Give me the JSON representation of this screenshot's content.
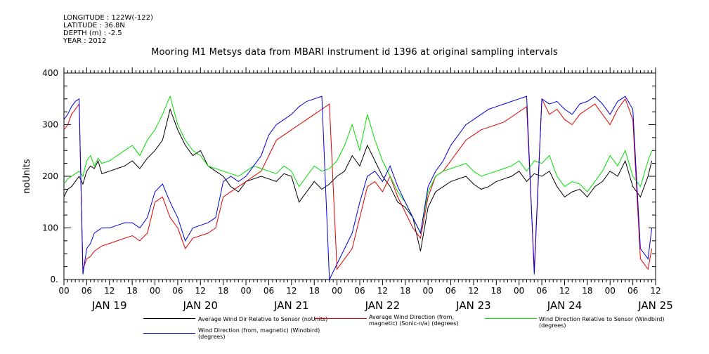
{
  "meta": {
    "longitude": "LONGITUDE : 122W(-122)",
    "latitude": "LATITUDE : 36.8N",
    "depth": "DEPTH (m) : -2.5",
    "year": "YEAR : 2012"
  },
  "chart_data": {
    "type": "line",
    "title": "Mooring M1 Metsys data from MBARI instrument id 1396 at original sampling intervals",
    "xlabel": "",
    "ylabel": "noUnits",
    "ylim": [
      0,
      400
    ],
    "yticks": [
      "0.",
      "100",
      "200",
      "300",
      "400"
    ],
    "xlim_hours": [
      0,
      156
    ],
    "x_tick_labels": [
      "00",
      "06",
      "12",
      "18",
      "00",
      "06",
      "12",
      "18",
      "00",
      "06",
      "12",
      "18",
      "00",
      "06",
      "12",
      "18",
      "00",
      "06",
      "12",
      "18",
      "00",
      "06",
      "12",
      "18",
      "00",
      "06",
      "12"
    ],
    "day_labels": [
      "JAN 19",
      "JAN 20",
      "JAN 21",
      "JAN 22",
      "JAN 23",
      "JAN 24",
      "JAN 25"
    ],
    "grid": false,
    "legend": "bottom",
    "series": [
      {
        "name": "Average Wind Dir Relative to Sensor (noUnits)",
        "color": "#000000",
        "x": [
          0,
          1,
          2,
          3,
          4,
          5,
          6,
          7,
          8,
          9,
          10,
          12,
          14,
          16,
          18,
          20,
          22,
          24,
          26,
          28,
          30,
          32,
          34,
          36,
          38,
          40,
          42,
          44,
          46,
          48,
          50,
          52,
          54,
          56,
          58,
          60,
          62,
          64,
          66,
          68,
          70,
          72,
          74,
          76,
          78,
          80,
          82,
          84,
          86,
          88,
          90,
          92,
          94,
          96,
          98,
          100,
          102,
          104,
          106,
          108,
          110,
          112,
          114,
          116,
          118,
          120,
          122,
          124,
          126,
          128,
          130,
          132,
          134,
          136,
          138,
          140,
          142,
          144,
          146,
          148,
          150,
          152,
          154,
          155
        ],
        "y": [
          160,
          175,
          180,
          190,
          200,
          185,
          210,
          220,
          215,
          230,
          205,
          210,
          215,
          220,
          230,
          215,
          235,
          250,
          270,
          330,
          290,
          260,
          240,
          250,
          220,
          210,
          200,
          180,
          170,
          190,
          195,
          200,
          195,
          190,
          205,
          200,
          150,
          170,
          190,
          175,
          185,
          200,
          210,
          240,
          220,
          260,
          230,
          200,
          180,
          150,
          140,
          120,
          55,
          140,
          170,
          180,
          190,
          195,
          200,
          185,
          175,
          180,
          190,
          195,
          200,
          210,
          190,
          205,
          200,
          210,
          180,
          160,
          170,
          175,
          160,
          180,
          190,
          210,
          200,
          230,
          180,
          160,
          200,
          230
        ]
      },
      {
        "name": "Average Wind Direction (from, magnetic) (Sonic-n/a) (degrees)",
        "color": "#e00000",
        "x": [
          0,
          1,
          2,
          3,
          4,
          5,
          6,
          7,
          8,
          9,
          10,
          12,
          14,
          16,
          18,
          20,
          22,
          24,
          26,
          28,
          30,
          32,
          34,
          36,
          38,
          40,
          42,
          44,
          46,
          48,
          50,
          52,
          54,
          56,
          58,
          60,
          62,
          64,
          66,
          68,
          70,
          72,
          74,
          76,
          78,
          80,
          82,
          84,
          86,
          88,
          90,
          92,
          94,
          96,
          98,
          100,
          102,
          104,
          106,
          108,
          110,
          112,
          114,
          116,
          118,
          120,
          122,
          124,
          126,
          128,
          130,
          132,
          134,
          136,
          138,
          140,
          142,
          144,
          146,
          148,
          150,
          152,
          154,
          155
        ],
        "y": [
          290,
          300,
          320,
          330,
          340,
          20,
          40,
          45,
          55,
          60,
          65,
          70,
          75,
          80,
          85,
          75,
          90,
          150,
          160,
          120,
          100,
          60,
          80,
          85,
          90,
          100,
          160,
          170,
          180,
          190,
          200,
          210,
          240,
          270,
          280,
          290,
          300,
          310,
          320,
          330,
          340,
          20,
          40,
          60,
          120,
          180,
          190,
          170,
          200,
          160,
          130,
          100,
          80,
          160,
          200,
          210,
          230,
          250,
          270,
          280,
          290,
          295,
          300,
          305,
          315,
          325,
          335,
          20,
          350,
          320,
          330,
          310,
          300,
          320,
          330,
          340,
          320,
          300,
          330,
          350,
          310,
          40,
          20,
          60
        ]
      },
      {
        "name": "Wind Direction Relative to Sensor (Windbird) (degrees)",
        "color": "#00e000",
        "x": [
          0,
          1,
          2,
          3,
          4,
          5,
          6,
          7,
          8,
          9,
          10,
          12,
          14,
          16,
          18,
          20,
          22,
          24,
          26,
          28,
          30,
          32,
          34,
          36,
          38,
          40,
          42,
          44,
          46,
          48,
          50,
          52,
          54,
          56,
          58,
          60,
          62,
          64,
          66,
          68,
          70,
          72,
          74,
          76,
          78,
          80,
          82,
          84,
          86,
          88,
          90,
          92,
          94,
          96,
          98,
          100,
          102,
          104,
          106,
          108,
          110,
          112,
          114,
          116,
          118,
          120,
          122,
          124,
          126,
          128,
          130,
          132,
          134,
          136,
          138,
          140,
          142,
          144,
          146,
          148,
          150,
          152,
          154,
          155
        ],
        "y": [
          185,
          195,
          200,
          205,
          210,
          200,
          230,
          240,
          220,
          235,
          225,
          230,
          240,
          250,
          260,
          240,
          270,
          290,
          320,
          355,
          300,
          270,
          250,
          240,
          220,
          215,
          210,
          205,
          200,
          210,
          220,
          215,
          210,
          205,
          220,
          210,
          180,
          200,
          220,
          210,
          215,
          230,
          260,
          300,
          250,
          320,
          270,
          230,
          200,
          170,
          150,
          120,
          90,
          170,
          200,
          210,
          215,
          220,
          225,
          210,
          200,
          205,
          210,
          215,
          220,
          230,
          210,
          230,
          225,
          240,
          200,
          180,
          190,
          185,
          170,
          190,
          210,
          240,
          220,
          250,
          200,
          180,
          230,
          250
        ]
      },
      {
        "name": "Wind Direction (from, magnetic) (Windbird) (degrees)",
        "color": "#0000e0",
        "x": [
          0,
          1,
          2,
          3,
          4,
          5,
          6,
          7,
          8,
          9,
          10,
          12,
          14,
          16,
          18,
          20,
          22,
          24,
          26,
          28,
          30,
          32,
          34,
          36,
          38,
          40,
          42,
          44,
          46,
          48,
          50,
          52,
          54,
          56,
          58,
          60,
          62,
          64,
          66,
          68,
          70,
          72,
          74,
          76,
          78,
          80,
          82,
          84,
          86,
          88,
          90,
          92,
          94,
          96,
          98,
          100,
          102,
          104,
          106,
          108,
          110,
          112,
          114,
          116,
          118,
          120,
          122,
          124,
          126,
          128,
          130,
          132,
          134,
          136,
          138,
          140,
          142,
          144,
          146,
          148,
          150,
          152,
          154,
          155
        ],
        "y": [
          310,
          320,
          335,
          345,
          350,
          10,
          60,
          70,
          90,
          95,
          100,
          100,
          105,
          110,
          110,
          100,
          120,
          170,
          185,
          150,
          120,
          75,
          100,
          105,
          110,
          120,
          190,
          200,
          190,
          200,
          220,
          240,
          280,
          300,
          310,
          320,
          335,
          345,
          350,
          355,
          0,
          30,
          60,
          90,
          150,
          200,
          210,
          190,
          220,
          180,
          150,
          120,
          90,
          180,
          210,
          230,
          260,
          280,
          300,
          310,
          320,
          330,
          335,
          340,
          345,
          350,
          355,
          10,
          350,
          340,
          345,
          330,
          320,
          340,
          345,
          355,
          340,
          320,
          345,
          355,
          330,
          60,
          40,
          100
        ]
      }
    ]
  }
}
